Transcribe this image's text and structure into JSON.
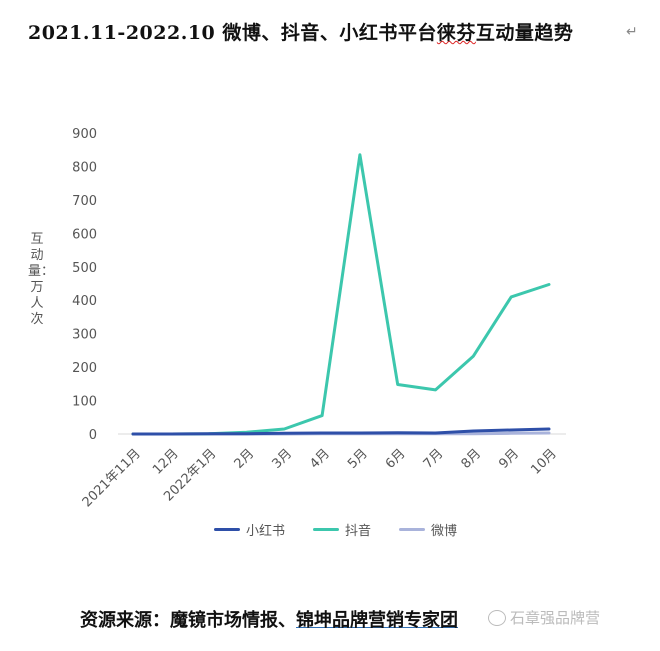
{
  "title_main": "2021.11-2022.10 微博、抖音、小红书平台",
  "title_mark": "徕芬",
  "title_tail": "互动量趋势",
  "return_symbol": "↵",
  "source_prefix": "资源来源：魔镜市场情报、",
  "source_underlined": "锦坤品牌营销专家团",
  "watermark": "石章强品牌营",
  "chart_data": {
    "type": "line",
    "title": "",
    "ylabel": "互动量：万人次",
    "xlabel": "",
    "ylim": [
      0,
      900
    ],
    "yticks": [
      0,
      100,
      200,
      300,
      400,
      500,
      600,
      700,
      800,
      900
    ],
    "categories": [
      "2021年11月",
      "12月",
      "2022年1月",
      "2月",
      "3月",
      "4月",
      "5月",
      "6月",
      "7月",
      "8月",
      "9月",
      "10月"
    ],
    "series": [
      {
        "name": "小红书",
        "color": "#2e4fa8",
        "values": [
          0,
          0,
          1,
          1,
          2,
          3,
          3,
          4,
          3,
          9,
          12,
          15
        ]
      },
      {
        "name": "抖音",
        "color": "#3cc7ad",
        "values": [
          0,
          0,
          1,
          5,
          15,
          55,
          835,
          148,
          132,
          233,
          410,
          447
        ]
      },
      {
        "name": "微博",
        "color": "#a9b3db",
        "values": [
          0,
          0,
          0,
          0,
          0,
          1,
          1,
          1,
          1,
          1,
          2,
          3
        ]
      }
    ],
    "grid": false,
    "legend_position": "bottom"
  }
}
